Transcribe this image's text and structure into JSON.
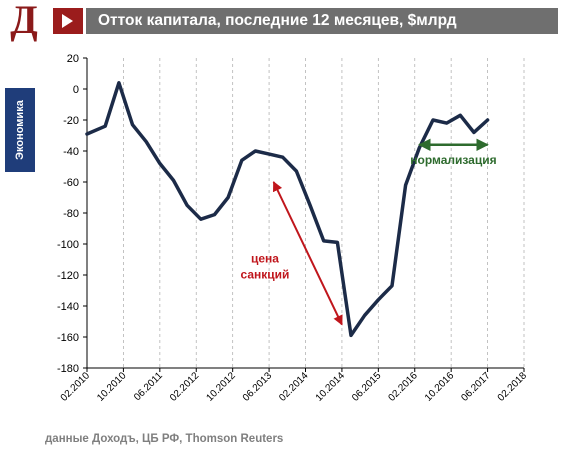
{
  "header": {
    "logo_letter": "Д",
    "title": "Отток капитала, последние 12 месяцев, $млрд"
  },
  "side_tab": {
    "label": "Экономика"
  },
  "source": "данные Доходъ, ЦБ РФ, Thomson Reuters",
  "colors": {
    "line": "#1c2b48",
    "brand_red": "#9b1c1c",
    "annotation_red": "#c0161c",
    "annotation_green": "#2e6b2e",
    "title_bar": "#6f6f6f",
    "side_tab": "#1f3d7a"
  },
  "chart_data": {
    "type": "line",
    "title": "",
    "xlabel": "",
    "ylabel": "",
    "ylim": [
      -180,
      20
    ],
    "yticks": [
      20,
      0,
      -20,
      -40,
      -60,
      -80,
      -100,
      -120,
      -140,
      -160,
      -180
    ],
    "xlim": [
      "2010-02",
      "2018-02"
    ],
    "xticks": [
      "02.2010",
      "10.2010",
      "06.2011",
      "02.2012",
      "10.2012",
      "06.2013",
      "02.2014",
      "10.2014",
      "06.2015",
      "02.2016",
      "10.2016",
      "06.2017",
      "02.2018"
    ],
    "grid": "vertical dashed",
    "series": [
      {
        "name": "",
        "x": [
          "2010-02",
          "2010-06",
          "2010-09",
          "2010-12",
          "2011-03",
          "2011-06",
          "2011-09",
          "2011-12",
          "2012-03",
          "2012-06",
          "2012-09",
          "2012-12",
          "2013-03",
          "2013-06",
          "2013-09",
          "2013-12",
          "2014-03",
          "2014-06",
          "2014-09",
          "2014-12",
          "2015-03",
          "2015-06",
          "2015-09",
          "2015-12",
          "2016-03",
          "2016-06",
          "2016-09",
          "2016-12",
          "2017-03",
          "2017-06"
        ],
        "values": [
          -29,
          -24,
          4,
          -23,
          -34,
          -48,
          -59,
          -75,
          -84,
          -81,
          -70,
          -46,
          -40,
          -42,
          -44,
          -53,
          -75,
          -98,
          -99,
          -159,
          -146,
          -136,
          -127,
          -62,
          -38,
          -20,
          -22,
          -17,
          -28,
          -20
        ]
      }
    ],
    "annotations": [
      {
        "text": [
          "цена",
          "санкций"
        ],
        "color": "#c0161c",
        "arrow": "double",
        "from": [
          "2013-07",
          -60
        ],
        "to": [
          "2014-10",
          -152
        ]
      },
      {
        "text": [
          "нормализация"
        ],
        "color": "#2e6b2e",
        "arrow": "double",
        "from": [
          "2016-03",
          -36
        ],
        "to": [
          "2017-06",
          -36
        ]
      }
    ]
  }
}
